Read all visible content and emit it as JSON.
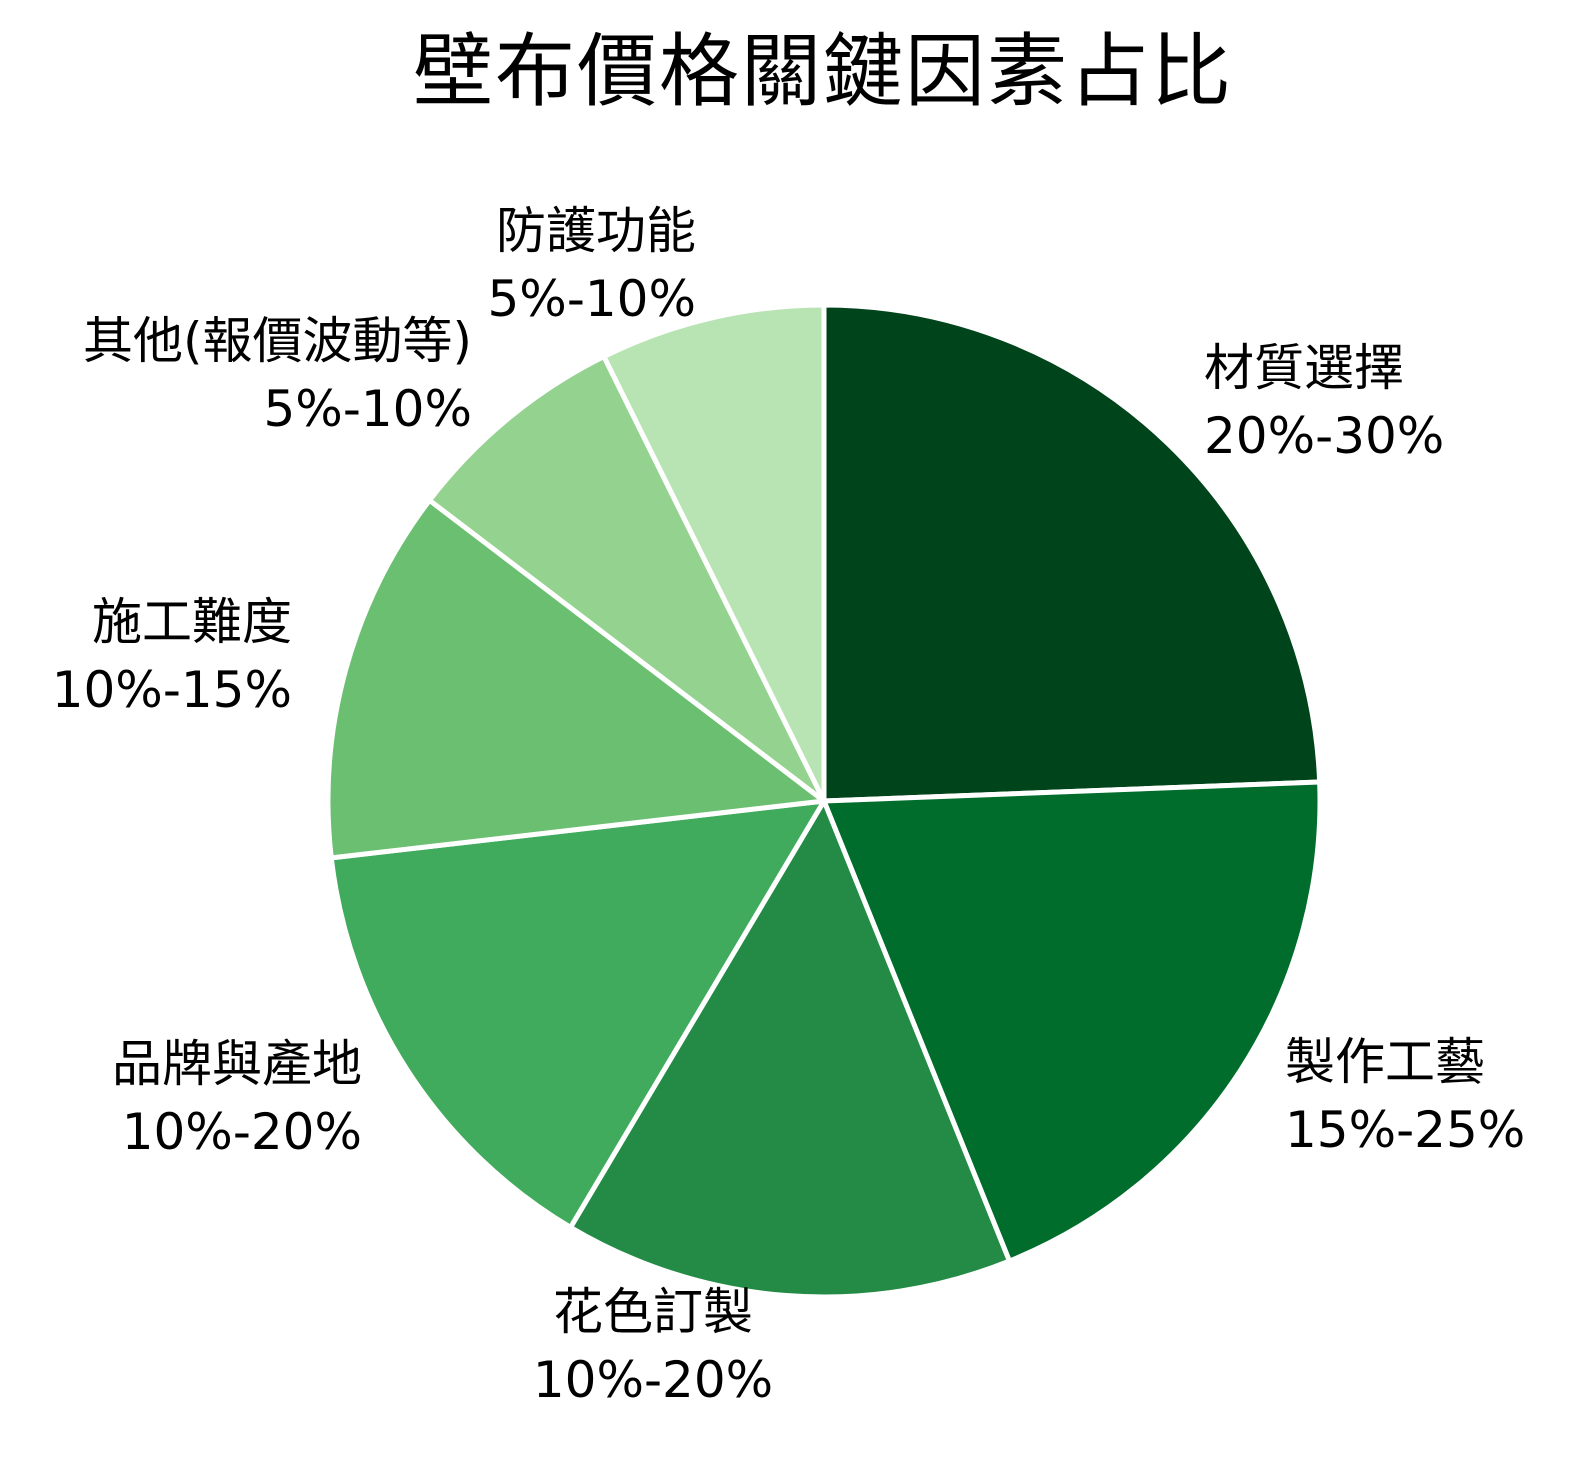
{
  "chart_data": {
    "type": "pie",
    "title": "壁布價格關鍵因素占比",
    "start_angle": "90 (top), clockwise",
    "categories": [
      "材質選擇",
      "製作工藝",
      "花色訂製",
      "品牌與產地",
      "施工難度",
      "其他(報價波動等)",
      "防護功能"
    ],
    "ranges": [
      "20%-30%",
      "15%-25%",
      "10%-20%",
      "10%-20%",
      "10%-15%",
      "5%-10%",
      "5%-10%"
    ],
    "values": [
      25,
      20,
      15,
      15,
      12.5,
      7.5,
      7.5
    ],
    "colors": [
      "#00441b",
      "#006d2c",
      "#238b45",
      "#41ab5d",
      "#6abf71",
      "#94d28f",
      "#b8e3b3"
    ],
    "legend": "none (labels placed outside slices)"
  },
  "title": "壁布價格關鍵因素占比",
  "labels": [
    {
      "name": "材質選擇",
      "range": "20%-30%"
    },
    {
      "name": "製作工藝",
      "range": "15%-25%"
    },
    {
      "name": "花色訂製",
      "range": "10%-20%"
    },
    {
      "name": "品牌與產地",
      "range": "10%-20%"
    },
    {
      "name": "施工難度",
      "range": "10%-15%"
    },
    {
      "name": "其他(報價波動等)",
      "range": "5%-10%"
    },
    {
      "name": "防護功能",
      "range": "5%-10%"
    }
  ]
}
